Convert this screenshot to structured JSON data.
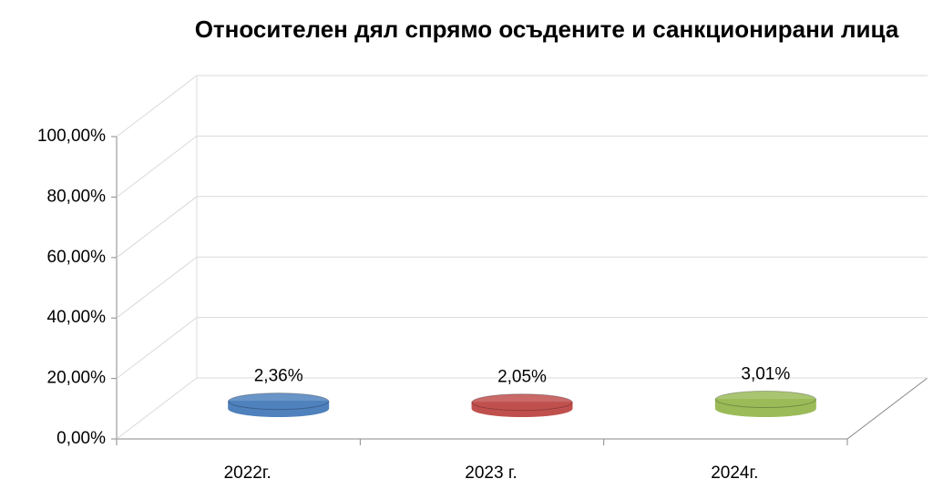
{
  "chart_data": {
    "type": "bar3d",
    "title": "Относителен дял спрямо осъдените и санкционирани лица",
    "categories": [
      "2022г.",
      "2023 г.",
      "2024г."
    ],
    "values": [
      2.36,
      2.05,
      3.01
    ],
    "value_labels": [
      "2,36%",
      "2,05%",
      "3,01%"
    ],
    "colors": [
      "#4f81bd",
      "#c0504d",
      "#9bbb59"
    ],
    "ylim": [
      0,
      100
    ],
    "yticks": [
      {
        "value": 0,
        "label": "0,00%"
      },
      {
        "value": 20,
        "label": "20,00%"
      },
      {
        "value": 40,
        "label": "40,00%"
      },
      {
        "value": 60,
        "label": "60,00%"
      },
      {
        "value": 80,
        "label": "80,00%"
      },
      {
        "value": 100,
        "label": "100,00%"
      }
    ],
    "grid": true
  }
}
